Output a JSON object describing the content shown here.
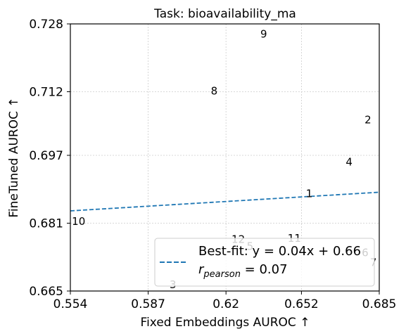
{
  "chart_data": {
    "type": "scatter",
    "title": "Task: bioavailability_ma",
    "xlabel": "Fixed Embeddings AUROC ↑",
    "ylabel": "FineTuned AUROC ↑",
    "xlim": [
      0.554,
      0.685
    ],
    "ylim": [
      0.665,
      0.728
    ],
    "xticks": [
      "0.554",
      "0.587",
      "0.62",
      "0.652",
      "0.685"
    ],
    "yticks": [
      "0.665",
      "0.681",
      "0.697",
      "0.712",
      "0.728"
    ],
    "grid": true,
    "points": [
      {
        "label": "1",
        "x": 0.6553,
        "y": 0.688
      },
      {
        "label": "2",
        "x": 0.6802,
        "y": 0.7054
      },
      {
        "label": "3",
        "x": 0.5975,
        "y": 0.6665
      },
      {
        "label": "4",
        "x": 0.6722,
        "y": 0.6954
      },
      {
        "label": "5",
        "x": 0.6302,
        "y": 0.6755
      },
      {
        "label": "6",
        "x": 0.679,
        "y": 0.674
      },
      {
        "label": "7",
        "x": 0.6825,
        "y": 0.6717
      },
      {
        "label": "8",
        "x": 0.615,
        "y": 0.7122
      },
      {
        "label": "9",
        "x": 0.636,
        "y": 0.7256
      },
      {
        "label": "10",
        "x": 0.5575,
        "y": 0.6814
      },
      {
        "label": "11",
        "x": 0.649,
        "y": 0.6774
      },
      {
        "label": "12",
        "x": 0.6252,
        "y": 0.6772
      }
    ],
    "fit_line": {
      "slope": 0.04,
      "intercept": 0.66,
      "color": "#1f77b4",
      "style": "dashed"
    },
    "legend": {
      "position": "lower-right",
      "line1": "Best-fit: y = 0.04x + 0.66",
      "line2_main": "r",
      "line2_sub": "pearson",
      "line2_rest": " = 0.07"
    },
    "colors": {
      "axis": "#000000",
      "grid": "#cccccc",
      "fit": "#1f77b4"
    }
  }
}
